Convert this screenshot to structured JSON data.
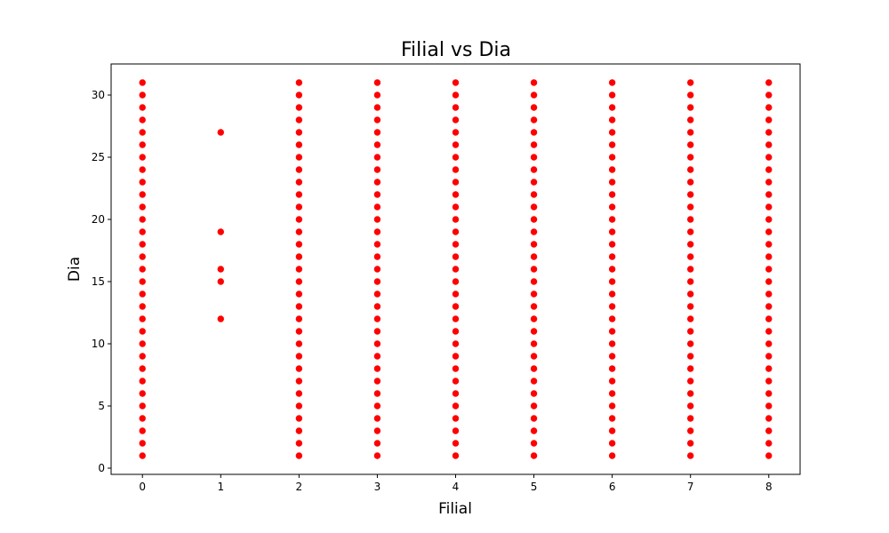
{
  "chart_data": {
    "type": "scatter",
    "title": "Filial vs Dia",
    "xlabel": "Filial",
    "ylabel": "Dia",
    "xlim": [
      -0.4,
      8.4
    ],
    "ylim": [
      -0.5,
      32.5
    ],
    "xticks": [
      0,
      1,
      2,
      3,
      4,
      5,
      6,
      7,
      8
    ],
    "yticks": [
      0,
      5,
      10,
      15,
      20,
      25,
      30
    ],
    "marker_color": "#ff0000",
    "grid": false,
    "legend": "none",
    "series": [
      {
        "points_by_x": [
          {
            "x": 0,
            "y": [
              1,
              2,
              3,
              4,
              5,
              6,
              7,
              8,
              9,
              10,
              11,
              12,
              13,
              14,
              15,
              16,
              17,
              18,
              19,
              20,
              21,
              22,
              23,
              24,
              25,
              26,
              27,
              28,
              29,
              30,
              31
            ]
          },
          {
            "x": 1,
            "y": [
              12,
              15,
              16,
              19,
              27
            ]
          },
          {
            "x": 2,
            "y": [
              1,
              2,
              3,
              4,
              5,
              6,
              7,
              8,
              9,
              10,
              11,
              12,
              13,
              14,
              15,
              16,
              17,
              18,
              19,
              20,
              21,
              22,
              23,
              24,
              25,
              26,
              27,
              28,
              29,
              30,
              31
            ]
          },
          {
            "x": 3,
            "y": [
              1,
              2,
              3,
              4,
              5,
              6,
              7,
              8,
              9,
              10,
              11,
              12,
              13,
              14,
              15,
              16,
              17,
              18,
              19,
              20,
              21,
              22,
              23,
              24,
              25,
              26,
              27,
              28,
              29,
              30,
              31
            ]
          },
          {
            "x": 4,
            "y": [
              1,
              2,
              3,
              4,
              5,
              6,
              7,
              8,
              9,
              10,
              11,
              12,
              13,
              14,
              15,
              16,
              17,
              18,
              19,
              20,
              21,
              22,
              23,
              24,
              25,
              26,
              27,
              28,
              29,
              30,
              31
            ]
          },
          {
            "x": 5,
            "y": [
              1,
              2,
              3,
              4,
              5,
              6,
              7,
              8,
              9,
              10,
              11,
              12,
              13,
              14,
              15,
              16,
              17,
              18,
              19,
              20,
              21,
              22,
              23,
              24,
              25,
              26,
              27,
              28,
              29,
              30,
              31
            ]
          },
          {
            "x": 6,
            "y": [
              1,
              2,
              3,
              4,
              5,
              6,
              7,
              8,
              9,
              10,
              11,
              12,
              13,
              14,
              15,
              16,
              17,
              18,
              19,
              20,
              21,
              22,
              23,
              24,
              25,
              26,
              27,
              28,
              29,
              30,
              31
            ]
          },
          {
            "x": 7,
            "y": [
              1,
              2,
              3,
              4,
              5,
              6,
              7,
              8,
              9,
              10,
              11,
              12,
              13,
              14,
              15,
              16,
              17,
              18,
              19,
              20,
              21,
              22,
              23,
              24,
              25,
              26,
              27,
              28,
              29,
              30,
              31
            ]
          },
          {
            "x": 8,
            "y": [
              1,
              2,
              3,
              4,
              5,
              6,
              7,
              8,
              9,
              10,
              11,
              12,
              13,
              14,
              15,
              16,
              17,
              18,
              19,
              20,
              21,
              22,
              23,
              24,
              25,
              26,
              27,
              28,
              29,
              30,
              31
            ]
          }
        ]
      }
    ]
  }
}
